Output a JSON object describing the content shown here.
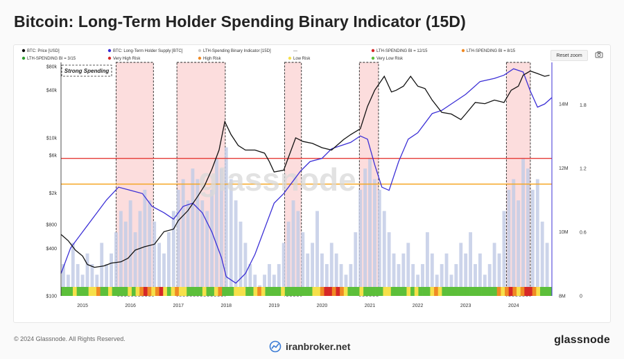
{
  "title": "Bitcoin: Long-Term Holder Spending Binary Indicator (15D)",
  "controls": {
    "reset_label": "Reset zoom",
    "camera_icon": "camera-icon"
  },
  "footer": {
    "copyright": "© 2024 Glassnode. All Rights Reserved.",
    "site": "iranbroker.net",
    "brand": "glassnode"
  },
  "watermark": "glassnode",
  "colors": {
    "price": "#111111",
    "supply": "#3b2fd6",
    "bars": "#c3cde6",
    "very_high": "#d62828",
    "high": "#f08a24",
    "low": "#f6e04a",
    "very_low": "#5cbf3a",
    "zone_fill": "#fbd2d2",
    "line_12": "#e53935",
    "line_8": "#f5a623",
    "line_3": "#2e9d2e"
  },
  "chart_data": {
    "type": "line",
    "legend": [
      {
        "label": "BTC: Price [USD]",
        "color": "#111111"
      },
      {
        "label": "BTC: Long-Term Holder Supply [BTC]",
        "color": "#3b2fd6"
      },
      {
        "label": "LTH-Spending Binary Indicator [15D]",
        "color": "#cccccc"
      },
      {
        "label": "---",
        "color": "#ffffff"
      },
      {
        "label": "LTH-SPENDING BI = 12/15",
        "color": "#d62828"
      },
      {
        "label": "LTH-SPENDING BI = 8/15",
        "color": "#f08a24"
      },
      {
        "label": "LTH-SPENDING BI = 3/15",
        "color": "#2e9d2e"
      },
      {
        "label": "Very High Risk",
        "color": "#d62828"
      },
      {
        "label": "High Risk",
        "color": "#f08a24"
      },
      {
        "label": "Low Risk",
        "color": "#f6e04a"
      },
      {
        "label": "Very Low Risk",
        "color": "#5cbf3a"
      }
    ],
    "annotation": "Strong Spending",
    "x_range": [
      2014.55,
      2024.8
    ],
    "x_ticks": [
      "2015",
      "2016",
      "2017",
      "2018",
      "2019",
      "2020",
      "2021",
      "2022",
      "2023",
      "2024"
    ],
    "y_left": {
      "scale": "log",
      "range": [
        100,
        90000
      ],
      "ticks": [
        "$100",
        "$400",
        "$800",
        "$2k",
        "$6k",
        "$10k",
        "$40k",
        "$80k"
      ],
      "tick_values": [
        100,
        400,
        800,
        2000,
        6000,
        10000,
        40000,
        80000
      ]
    },
    "y_mid": {
      "range": [
        8,
        15.3
      ],
      "ticks": [
        "8M",
        "10M",
        "12M",
        "14M"
      ],
      "tick_values": [
        8,
        10,
        12,
        14
      ]
    },
    "y_right": {
      "range": [
        0,
        2.2
      ],
      "ticks": [
        "0",
        "0.6",
        "1.2",
        "1.8"
      ],
      "tick_values": [
        0,
        0.6,
        1.2,
        1.8
      ]
    },
    "thresholds": [
      {
        "name": "LTH-SPENDING BI = 12/15",
        "value": 12,
        "color": "#e53935"
      },
      {
        "name": "LTH-SPENDING BI = 8/15",
        "value": 8,
        "color": "#f5a623"
      },
      {
        "name": "LTH-SPENDING BI = 3/15",
        "value": 3,
        "color": "#2e9d2e"
      }
    ],
    "strong_spending_zones": [
      [
        2015.7,
        2016.48
      ],
      [
        2016.97,
        2017.98
      ],
      [
        2019.22,
        2019.57
      ],
      [
        2020.78,
        2021.18
      ],
      [
        2023.85,
        2024.35
      ]
    ],
    "price_series": {
      "name": "BTC: Price [USD]",
      "x": [
        2014.55,
        2014.7,
        2014.85,
        2015.0,
        2015.1,
        2015.25,
        2015.45,
        2015.6,
        2015.8,
        2015.95,
        2016.1,
        2016.3,
        2016.5,
        2016.7,
        2016.9,
        2017.0,
        2017.2,
        2017.4,
        2017.55,
        2017.7,
        2017.85,
        2017.97,
        2018.1,
        2018.25,
        2018.4,
        2018.6,
        2018.8,
        2018.9,
        2019.0,
        2019.2,
        2019.45,
        2019.6,
        2019.8,
        2020.0,
        2020.2,
        2020.45,
        2020.6,
        2020.8,
        2020.95,
        2021.1,
        2021.3,
        2021.45,
        2021.55,
        2021.7,
        2021.85,
        2022.0,
        2022.15,
        2022.3,
        2022.5,
        2022.7,
        2022.9,
        2023.0,
        2023.2,
        2023.4,
        2023.6,
        2023.8,
        2023.95,
        2024.1,
        2024.2,
        2024.35,
        2024.5,
        2024.65,
        2024.75
      ],
      "y": [
        600,
        500,
        380,
        320,
        250,
        230,
        240,
        260,
        270,
        300,
        380,
        420,
        450,
        650,
        700,
        900,
        1200,
        1800,
        2500,
        4000,
        7000,
        16000,
        11000,
        8000,
        7000,
        7000,
        6400,
        5000,
        3700,
        3900,
        10000,
        9000,
        8500,
        7500,
        7000,
        9500,
        11000,
        13000,
        25000,
        40000,
        60000,
        38000,
        40000,
        45000,
        60000,
        45000,
        42000,
        30000,
        21000,
        20000,
        17000,
        20000,
        28000,
        27000,
        30000,
        28000,
        40000,
        45000,
        62000,
        70000,
        65000,
        60000,
        62000
      ]
    },
    "supply_series": {
      "name": "BTC: Long-Term Holder Supply [BTC]",
      "x": [
        2014.55,
        2014.75,
        2015.0,
        2015.3,
        2015.5,
        2015.75,
        2016.0,
        2016.25,
        2016.45,
        2016.7,
        2016.9,
        2017.1,
        2017.3,
        2017.5,
        2017.7,
        2017.9,
        2018.0,
        2018.2,
        2018.4,
        2018.6,
        2018.8,
        2019.0,
        2019.2,
        2019.4,
        2019.55,
        2019.75,
        2020.0,
        2020.2,
        2020.4,
        2020.6,
        2020.8,
        2020.95,
        2021.1,
        2021.25,
        2021.4,
        2021.6,
        2021.8,
        2022.0,
        2022.3,
        2022.5,
        2022.7,
        2023.0,
        2023.3,
        2023.6,
        2023.8,
        2024.0,
        2024.2,
        2024.35,
        2024.5,
        2024.65,
        2024.8
      ],
      "y": [
        8.7,
        9.5,
        10.0,
        10.6,
        11.0,
        11.4,
        11.3,
        11.2,
        10.8,
        10.6,
        10.4,
        10.8,
        10.9,
        10.6,
        10.0,
        9.2,
        8.6,
        8.4,
        8.7,
        9.3,
        10.1,
        10.9,
        11.2,
        11.6,
        11.9,
        12.2,
        12.3,
        12.6,
        12.7,
        12.8,
        13.0,
        12.9,
        12.1,
        11.4,
        11.3,
        12.2,
        12.9,
        13.1,
        13.7,
        13.8,
        14.0,
        14.3,
        14.7,
        14.8,
        14.9,
        15.1,
        15.0,
        14.4,
        13.9,
        14.0,
        14.2
      ]
    },
    "bars_series": {
      "name": "LTH-Spending Binary Indicator [15D]",
      "x": [
        2014.6,
        2014.7,
        2014.8,
        2014.9,
        2015.0,
        2015.1,
        2015.2,
        2015.3,
        2015.4,
        2015.5,
        2015.6,
        2015.7,
        2015.8,
        2015.9,
        2016.0,
        2016.1,
        2016.2,
        2016.3,
        2016.4,
        2016.5,
        2016.6,
        2016.7,
        2016.8,
        2016.9,
        2017.0,
        2017.1,
        2017.2,
        2017.3,
        2017.4,
        2017.5,
        2017.6,
        2017.7,
        2017.8,
        2017.9,
        2018.0,
        2018.1,
        2018.2,
        2018.3,
        2018.4,
        2018.5,
        2018.6,
        2018.7,
        2018.8,
        2018.9,
        2019.0,
        2019.1,
        2019.2,
        2019.3,
        2019.4,
        2019.5,
        2019.6,
        2019.7,
        2019.8,
        2019.9,
        2020.0,
        2020.1,
        2020.2,
        2020.3,
        2020.4,
        2020.5,
        2020.6,
        2020.7,
        2020.8,
        2020.9,
        2021.0,
        2021.1,
        2021.2,
        2021.3,
        2021.4,
        2021.5,
        2021.6,
        2021.7,
        2021.8,
        2021.9,
        2022.0,
        2022.1,
        2022.2,
        2022.3,
        2022.4,
        2022.5,
        2022.6,
        2022.7,
        2022.8,
        2022.9,
        2023.0,
        2023.1,
        2023.2,
        2023.3,
        2023.4,
        2023.5,
        2023.6,
        2023.7,
        2023.8,
        2023.9,
        2024.0,
        2024.1,
        2024.2,
        2024.3,
        2024.4,
        2024.5,
        2024.6,
        2024.7
      ],
      "y": [
        0.3,
        0.2,
        0.5,
        0.3,
        0.2,
        0.4,
        0.3,
        0.2,
        0.5,
        0.3,
        0.4,
        0.6,
        0.8,
        0.7,
        0.9,
        0.6,
        0.8,
        1.0,
        0.9,
        0.7,
        0.5,
        0.4,
        0.6,
        0.8,
        1.0,
        1.1,
        0.9,
        1.2,
        1.1,
        0.9,
        0.8,
        1.0,
        1.3,
        1.2,
        1.4,
        1.1,
        0.9,
        0.7,
        0.5,
        0.3,
        0.2,
        0.1,
        0.2,
        0.3,
        0.2,
        0.3,
        0.5,
        0.7,
        0.9,
        0.8,
        0.6,
        0.4,
        0.5,
        0.8,
        0.4,
        0.3,
        0.5,
        0.4,
        0.3,
        0.2,
        0.3,
        0.6,
        1.0,
        1.2,
        1.3,
        1.1,
        1.0,
        0.8,
        0.6,
        0.4,
        0.3,
        0.4,
        0.5,
        0.3,
        0.2,
        0.3,
        0.6,
        0.4,
        0.2,
        0.3,
        0.4,
        0.2,
        0.3,
        0.5,
        0.4,
        0.6,
        0.3,
        0.4,
        0.2,
        0.3,
        0.5,
        0.4,
        0.8,
        1.0,
        1.1,
        0.9,
        1.3,
        1.2,
        1.0,
        1.1,
        0.7,
        0.5
      ]
    },
    "signal_strip": {
      "x_start": 2014.55,
      "x_end": 2024.8,
      "levels": "00010001120010000101232123101211000010012000111001210000100000001123323210001000001100001010001210000000000000021232123321000"
    },
    "xlabel": "",
    "ylabel": ""
  }
}
